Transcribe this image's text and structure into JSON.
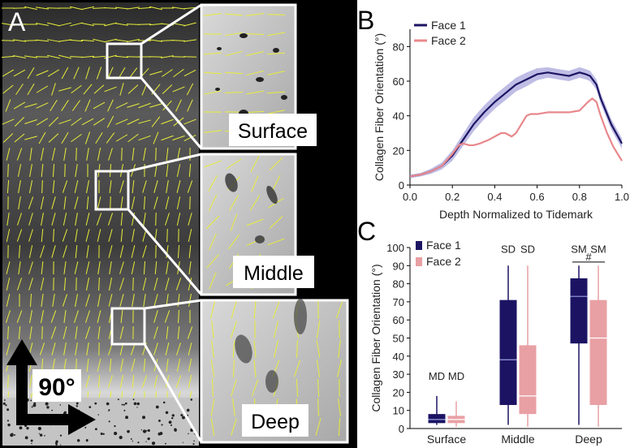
{
  "panels": {
    "a": {
      "letter": "A",
      "insets": [
        {
          "label": "Surface"
        },
        {
          "label": "Middle"
        },
        {
          "label": "Deep"
        }
      ],
      "angle_label": "90°"
    },
    "b": {
      "letter": "B"
    },
    "c": {
      "letter": "C"
    }
  },
  "chart_data": [
    {
      "id": "B",
      "type": "line",
      "title": "",
      "xlabel": "Depth Normalized to Tidemark",
      "ylabel": "Collagen Fiber Orientation (°)",
      "xlim": [
        0,
        1.0
      ],
      "ylim": [
        0,
        90
      ],
      "xticks": [
        "0.0",
        "0.2",
        "0.4",
        "0.6",
        "0.8",
        "1.0"
      ],
      "yticks": [
        "0",
        "20",
        "40",
        "60",
        "80"
      ],
      "legend": "top-left",
      "series": [
        {
          "name": "Face 1",
          "color": "#1c1463",
          "band_color": "#8a86d0",
          "x": [
            0.0,
            0.05,
            0.1,
            0.15,
            0.2,
            0.25,
            0.3,
            0.35,
            0.4,
            0.45,
            0.5,
            0.55,
            0.6,
            0.65,
            0.7,
            0.75,
            0.8,
            0.83,
            0.85,
            0.88,
            0.9,
            0.95,
            1.0
          ],
          "values": [
            5,
            6,
            8,
            11,
            17,
            26,
            35,
            42,
            48,
            53,
            58,
            61,
            64,
            65,
            64,
            63,
            65,
            64,
            63,
            58,
            50,
            35,
            24
          ],
          "err": [
            1,
            1,
            1.5,
            2,
            3,
            3.5,
            4,
            4,
            4,
            4,
            4,
            4,
            3.5,
            3,
            3,
            3,
            3,
            3,
            3,
            3,
            3,
            3,
            3
          ]
        },
        {
          "name": "Face 2",
          "color": "#e8888c",
          "x": [
            0.0,
            0.05,
            0.1,
            0.15,
            0.2,
            0.23,
            0.25,
            0.28,
            0.3,
            0.33,
            0.37,
            0.4,
            0.43,
            0.45,
            0.48,
            0.5,
            0.53,
            0.55,
            0.57,
            0.6,
            0.65,
            0.7,
            0.75,
            0.8,
            0.84,
            0.86,
            0.88,
            0.9,
            0.93,
            0.96,
            1.0
          ],
          "values": [
            5,
            6,
            8,
            11,
            18,
            23,
            24,
            23,
            23,
            24,
            26,
            28,
            30,
            30,
            28,
            30,
            36,
            40,
            41,
            41,
            42,
            42,
            42,
            43,
            48,
            50,
            48,
            40,
            30,
            22,
            14
          ]
        }
      ]
    },
    {
      "id": "C",
      "type": "box",
      "title": "",
      "xlabel": "",
      "ylabel": "Collagen Fiber Orientation (°)",
      "ylim": [
        0,
        100
      ],
      "yticks": [
        "0",
        "10",
        "20",
        "30",
        "40",
        "50",
        "60",
        "70",
        "80",
        "90",
        "100"
      ],
      "legend": "top-left",
      "categories": [
        "Surface",
        "Middle",
        "Deep"
      ],
      "series": [
        {
          "name": "Face 1",
          "color": "#1c1463",
          "median_color": "#9aa0e0",
          "boxes": [
            {
              "min": 2,
              "q1": 3,
              "median": 5,
              "q3": 8,
              "max": 18
            },
            {
              "min": 2,
              "q1": 13,
              "median": 38,
              "q3": 71,
              "max": 90
            },
            {
              "min": 2,
              "q1": 47,
              "median": 73,
              "q3": 83,
              "max": 90
            }
          ]
        },
        {
          "name": "Face 2",
          "color": "#e8a0a4",
          "median_color": "#ffffff",
          "boxes": [
            {
              "min": 1,
              "q1": 3,
              "median": 5,
              "q3": 7,
              "max": 15
            },
            {
              "min": 1,
              "q1": 8,
              "median": 18,
              "q3": 46,
              "max": 90
            },
            {
              "min": 1,
              "q1": 13,
              "median": 50,
              "q3": 71,
              "max": 90
            }
          ]
        }
      ],
      "annotations": [
        {
          "category": "Surface",
          "series": "Face 1",
          "text": "MD",
          "y": 27
        },
        {
          "category": "Surface",
          "series": "Face 2",
          "text": "MD",
          "y": 27
        },
        {
          "category": "Middle",
          "series": "Face 1",
          "text": "SD",
          "y": 97
        },
        {
          "category": "Middle",
          "series": "Face 2",
          "text": "SD",
          "y": 97
        },
        {
          "category": "Deep",
          "series": "Face 1",
          "text": "SM",
          "y": 97
        },
        {
          "category": "Deep",
          "series": "Face 2",
          "text": "SM",
          "y": 97
        },
        {
          "category": "Deep",
          "series": "both",
          "text": "#",
          "y": 92
        }
      ]
    }
  ]
}
